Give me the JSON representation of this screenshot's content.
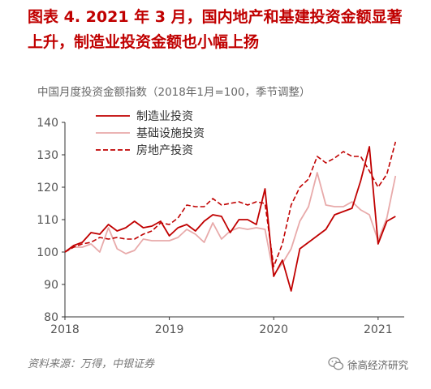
{
  "figure": {
    "title_line1": "图表 4.  2021 年 3 月，国内地产和基建投资金额显著",
    "title_line2": "上升，制造业投资金额也小幅上扬",
    "source": "资料来源：万得，中银证券",
    "watermark": "徐高经济研究"
  },
  "colors": {
    "title": "#c00000",
    "manufacturing": "#c00000",
    "infrastructure": "#e8aaaa",
    "real_estate": "#c00000"
  },
  "chart_data": {
    "type": "line",
    "subtitle": "中国月度投资金额指数（2018年1月=100，季节调整）",
    "ylim": [
      80,
      140
    ],
    "yticks": [
      80,
      90,
      100,
      110,
      120,
      130,
      140
    ],
    "xlim": [
      0,
      39
    ],
    "xticks": [
      {
        "x": 0,
        "label": "2018"
      },
      {
        "x": 12,
        "label": "2019"
      },
      {
        "x": 24,
        "label": "2020"
      },
      {
        "x": 36,
        "label": "2021"
      }
    ],
    "legend_position": "top-left",
    "x_note": "month index, 0 = 2018-01",
    "series": [
      {
        "name": "制造业投资",
        "style": "solid",
        "color": "#c00000",
        "values": [
          100,
          102,
          103,
          106,
          105.5,
          108.5,
          106.5,
          107.5,
          109.5,
          107.5,
          108,
          109.5,
          105,
          107.5,
          108.5,
          106.5,
          109.5,
          111.5,
          111,
          106,
          110,
          110,
          108.5,
          119.5,
          92.5,
          97.5,
          88,
          101,
          103,
          105,
          107,
          111.5,
          112.5,
          113.5,
          122,
          132.5,
          102.5,
          109.5,
          111
        ]
      },
      {
        "name": "基础设施投资",
        "style": "solid",
        "color": "#e8aaaa",
        "values": [
          100,
          101.5,
          101.5,
          102.5,
          100,
          107.5,
          101,
          99.5,
          100.5,
          104,
          103.5,
          103.5,
          103.5,
          104.5,
          107,
          105.5,
          103,
          109,
          104,
          106.5,
          107.5,
          107,
          107.5,
          107,
          93,
          96.5,
          101,
          109.5,
          114,
          124.5,
          114.5,
          114,
          114,
          115.5,
          113,
          111.5,
          103.5,
          110.5,
          123.5
        ]
      },
      {
        "name": "房地产投资",
        "style": "dashed",
        "color": "#c00000",
        "values": [
          100,
          101.5,
          102.5,
          103,
          104.5,
          104,
          104.5,
          104,
          104,
          105.5,
          106.5,
          109,
          108.5,
          110.5,
          114.5,
          114,
          114,
          116.5,
          114.5,
          115,
          115.5,
          114.5,
          115.5,
          115,
          95.5,
          102.5,
          114.5,
          120,
          122.5,
          129.5,
          127.5,
          129,
          131,
          129.5,
          129.5,
          125,
          120,
          124,
          134
        ]
      }
    ]
  }
}
